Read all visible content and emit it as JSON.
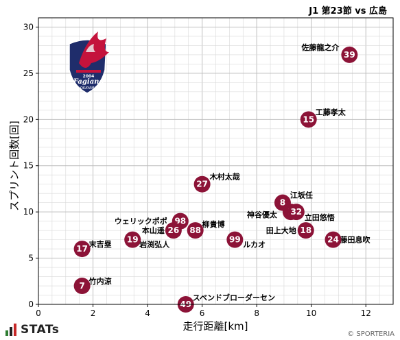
{
  "header": {
    "match": "J1 第23節 vs 広島"
  },
  "footer": {
    "brand": "STATs",
    "copyright": "© SPORTERIA"
  },
  "colors": {
    "dot": "#8c1337",
    "grid": "#d9d9d9",
    "axis": "#000000",
    "brand_green": "#2e7d32",
    "brand_red": "#c62828"
  },
  "logo": {
    "icon": "fagiano-okayama-crest",
    "text": "Fagiano",
    "sub": "OKAYAMA",
    "year": "2004"
  },
  "chart_data": {
    "type": "scatter",
    "title": "",
    "xlabel": "走行距離[km]",
    "ylabel": "スプリント回数[回]",
    "xlim": [
      0,
      13
    ],
    "ylim": [
      0,
      31
    ],
    "x_ticks": [
      0,
      2,
      4,
      6,
      8,
      10,
      12
    ],
    "y_ticks": [
      0,
      5,
      10,
      15,
      20,
      25,
      30
    ],
    "grid": true,
    "points": [
      {
        "number": "39",
        "name": "佐藤龍之介",
        "x": 11.4,
        "y": 27
      },
      {
        "number": "15",
        "name": "工藤孝太",
        "x": 9.9,
        "y": 20
      },
      {
        "number": "27",
        "name": "木村太哉",
        "x": 6.0,
        "y": 13
      },
      {
        "number": "8",
        "name": "江坂任",
        "x": 8.95,
        "y": 11
      },
      {
        "number": "3",
        "name": "神谷優太",
        "x": 9.25,
        "y": 10
      },
      {
        "number": "32",
        "name": "立田悠悟",
        "x": 9.45,
        "y": 10
      },
      {
        "number": "98",
        "name": "ウェリックポポ",
        "x": 5.2,
        "y": 9
      },
      {
        "number": "26",
        "name": "本山遥",
        "x": 4.95,
        "y": 8
      },
      {
        "number": "88",
        "name": "柳貴博",
        "x": 5.75,
        "y": 8
      },
      {
        "number": "18",
        "name": "田上大地",
        "x": 9.8,
        "y": 8
      },
      {
        "number": "24",
        "name": "藤田息吹",
        "x": 10.8,
        "y": 7
      },
      {
        "number": "19",
        "name": "岩渕弘人",
        "x": 3.45,
        "y": 7
      },
      {
        "number": "99",
        "name": "ルカオ",
        "x": 7.2,
        "y": 7
      },
      {
        "number": "17",
        "name": "末吉塁",
        "x": 1.6,
        "y": 6
      },
      {
        "number": "7",
        "name": "竹内涼",
        "x": 1.6,
        "y": 2
      },
      {
        "number": "49",
        "name": "スベンドブローダーセン",
        "x": 5.4,
        "y": 0
      }
    ]
  }
}
